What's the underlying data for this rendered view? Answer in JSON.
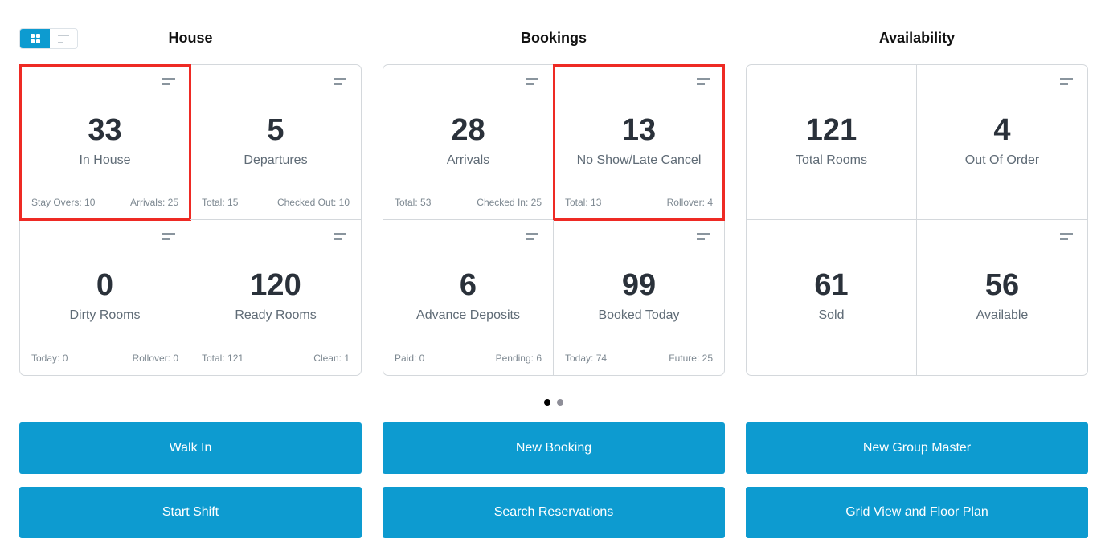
{
  "colors": {
    "accent": "#0d9bd0",
    "highlight": "#ee2a24"
  },
  "view_toggle": {
    "grid": "grid-icon",
    "list": "list-icon",
    "active": "grid"
  },
  "groups": [
    {
      "title": "House",
      "cells": [
        {
          "value": "33",
          "label": "In House",
          "left": "Stay Overs: 10",
          "right": "Arrivals: 25",
          "menu": true,
          "highlight": true
        },
        {
          "value": "5",
          "label": "Departures",
          "left": "Total: 15",
          "right": "Checked Out: 10",
          "menu": true
        },
        {
          "value": "0",
          "label": "Dirty Rooms",
          "left": "Today: 0",
          "right": "Rollover: 0",
          "menu": true
        },
        {
          "value": "120",
          "label": "Ready Rooms",
          "left": "Total: 121",
          "right": "Clean: 1",
          "menu": true
        }
      ]
    },
    {
      "title": "Bookings",
      "cells": [
        {
          "value": "28",
          "label": "Arrivals",
          "left": "Total: 53",
          "right": "Checked In: 25",
          "menu": true
        },
        {
          "value": "13",
          "label": "No Show/Late Cancel",
          "left": "Total: 13",
          "right": "Rollover: 4",
          "menu": true,
          "highlight": true
        },
        {
          "value": "6",
          "label": "Advance Deposits",
          "left": "Paid: 0",
          "right": "Pending: 6",
          "menu": true
        },
        {
          "value": "99",
          "label": "Booked Today",
          "left": "Today: 74",
          "right": "Future: 25",
          "menu": true
        }
      ]
    },
    {
      "title": "Availability",
      "cells": [
        {
          "value": "121",
          "label": "Total Rooms",
          "left": "",
          "right": "",
          "menu": false
        },
        {
          "value": "4",
          "label": "Out Of Order",
          "left": "",
          "right": "",
          "menu": true
        },
        {
          "value": "61",
          "label": "Sold",
          "left": "",
          "right": "",
          "menu": false
        },
        {
          "value": "56",
          "label": "Available",
          "left": "",
          "right": "",
          "menu": true
        }
      ]
    }
  ],
  "pagination": {
    "pages": 2,
    "current": 1
  },
  "buttons": [
    "Walk In",
    "New Booking",
    "New Group Master",
    "Start Shift",
    "Search Reservations",
    "Grid View and Floor Plan"
  ]
}
